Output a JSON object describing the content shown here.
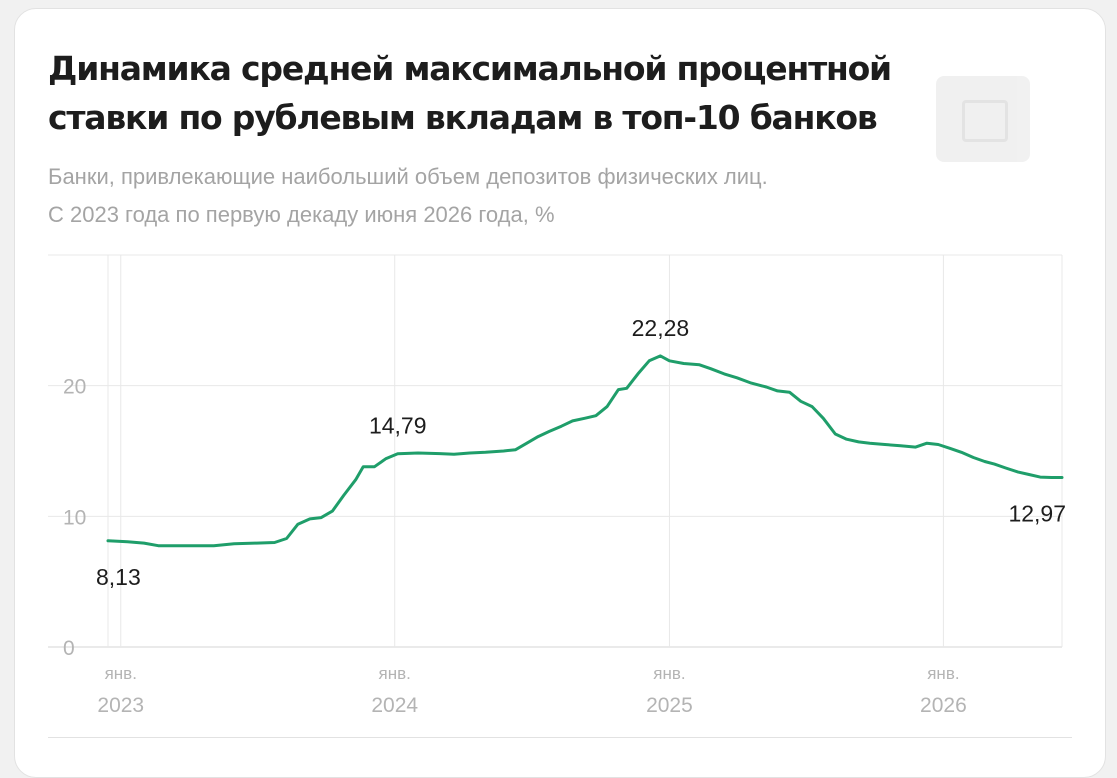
{
  "chart_data": {
    "type": "line",
    "title": "Динамика средней максимальной процентной ставки по рублевым вкладам в топ-10 банков",
    "title_lines": [
      "Динамика средней максимальной процентной",
      "ставки по рублевым вкладам в топ-10 банков"
    ],
    "subtitle": "Банки, привлекающие наибольший объем депозитов физических лиц. С 2023 года по первую декаду июня 2026 года, %",
    "subtitle_lines": [
      "Банки, привлекающие наибольший объем депозитов физических лиц.",
      "С 2023 года по первую декаду июня 2026 года, %"
    ],
    "ylim": [
      0,
      30
    ],
    "y_ticks": [
      0,
      10,
      20
    ],
    "grid": true,
    "line_color": "#1f9e6a",
    "x_ticks": [
      {
        "date": "2023-01",
        "month": "янв.",
        "year": "2023"
      },
      {
        "date": "2024-01",
        "month": "янв.",
        "year": "2024"
      },
      {
        "date": "2025-01",
        "month": "янв.",
        "year": "2025"
      },
      {
        "date": "2026-01",
        "month": "янв.",
        "year": "2026"
      }
    ],
    "series": [
      {
        "points": [
          [
            "2022-12-15",
            8.13
          ],
          [
            "2023-01-10",
            8.05
          ],
          [
            "2023-02-01",
            7.95
          ],
          [
            "2023-02-20",
            7.75
          ],
          [
            "2023-03-15",
            7.75
          ],
          [
            "2023-04-10",
            7.75
          ],
          [
            "2023-05-05",
            7.75
          ],
          [
            "2023-06-01",
            7.9
          ],
          [
            "2023-07-01",
            7.95
          ],
          [
            "2023-07-25",
            8.0
          ],
          [
            "2023-08-10",
            8.3
          ],
          [
            "2023-08-25",
            9.4
          ],
          [
            "2023-09-10",
            9.8
          ],
          [
            "2023-09-25",
            9.9
          ],
          [
            "2023-10-10",
            10.4
          ],
          [
            "2023-10-25",
            11.6
          ],
          [
            "2023-11-10",
            12.8
          ],
          [
            "2023-11-20",
            13.8
          ],
          [
            "2023-12-05",
            13.8
          ],
          [
            "2023-12-20",
            14.4
          ],
          [
            "2024-01-05",
            14.79
          ],
          [
            "2024-02-01",
            14.85
          ],
          [
            "2024-03-01",
            14.8
          ],
          [
            "2024-03-20",
            14.75
          ],
          [
            "2024-04-10",
            14.85
          ],
          [
            "2024-05-01",
            14.9
          ],
          [
            "2024-05-25",
            15.0
          ],
          [
            "2024-06-10",
            15.1
          ],
          [
            "2024-06-25",
            15.6
          ],
          [
            "2024-07-10",
            16.1
          ],
          [
            "2024-07-25",
            16.5
          ],
          [
            "2024-08-10",
            16.9
          ],
          [
            "2024-08-25",
            17.3
          ],
          [
            "2024-09-10",
            17.5
          ],
          [
            "2024-09-25",
            17.7
          ],
          [
            "2024-10-10",
            18.4
          ],
          [
            "2024-10-25",
            19.7
          ],
          [
            "2024-11-05",
            19.8
          ],
          [
            "2024-11-20",
            20.9
          ],
          [
            "2024-12-05",
            21.9
          ],
          [
            "2024-12-20",
            22.28
          ],
          [
            "2025-01-01",
            21.9
          ],
          [
            "2025-01-20",
            21.7
          ],
          [
            "2025-02-10",
            21.6
          ],
          [
            "2025-02-25",
            21.3
          ],
          [
            "2025-03-15",
            20.9
          ],
          [
            "2025-04-01",
            20.6
          ],
          [
            "2025-04-20",
            20.2
          ],
          [
            "2025-05-10",
            19.9
          ],
          [
            "2025-05-25",
            19.6
          ],
          [
            "2025-06-10",
            19.5
          ],
          [
            "2025-06-25",
            18.8
          ],
          [
            "2025-07-10",
            18.4
          ],
          [
            "2025-07-25",
            17.5
          ],
          [
            "2025-08-10",
            16.3
          ],
          [
            "2025-08-25",
            15.9
          ],
          [
            "2025-09-10",
            15.7
          ],
          [
            "2025-09-25",
            15.6
          ],
          [
            "2025-10-15",
            15.5
          ],
          [
            "2025-11-05",
            15.4
          ],
          [
            "2025-11-25",
            15.3
          ],
          [
            "2025-12-10",
            15.6
          ],
          [
            "2025-12-25",
            15.5
          ],
          [
            "2026-01-10",
            15.2
          ],
          [
            "2026-01-25",
            14.9
          ],
          [
            "2026-02-10",
            14.5
          ],
          [
            "2026-02-25",
            14.2
          ],
          [
            "2026-03-10",
            14.0
          ],
          [
            "2026-03-25",
            13.7
          ],
          [
            "2026-04-10",
            13.4
          ],
          [
            "2026-04-25",
            13.2
          ],
          [
            "2026-05-10",
            13.0
          ],
          [
            "2026-05-25",
            12.97
          ],
          [
            "2026-06-08",
            12.97
          ]
        ]
      }
    ],
    "annotations": [
      {
        "date": "2022-12-15",
        "value": 8.13,
        "label": "8,13",
        "position": "below"
      },
      {
        "date": "2024-01-05",
        "value": 14.79,
        "label": "14,79",
        "position": "above"
      },
      {
        "date": "2024-12-20",
        "value": 22.28,
        "label": "22,28",
        "position": "above"
      },
      {
        "date": "2026-06-08",
        "value": 12.97,
        "label": "12,97",
        "position": "below"
      }
    ]
  }
}
